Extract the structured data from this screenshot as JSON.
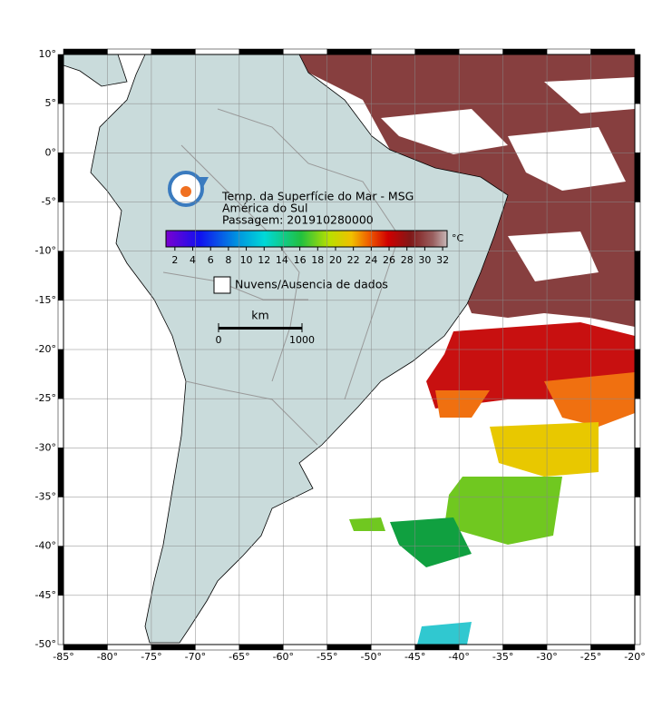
{
  "map": {
    "title_lines": [
      "Temp. da Superfície do Mar - MSG",
      "América do Sul",
      "Passagem: 201910280000"
    ],
    "xlim": [
      -85,
      -20
    ],
    "ylim": [
      -50,
      10
    ],
    "xticks": [
      {
        "value": -85,
        "label": "-85°"
      },
      {
        "value": -80,
        "label": "-80°"
      },
      {
        "value": -75,
        "label": "-75°"
      },
      {
        "value": -70,
        "label": "-70°"
      },
      {
        "value": -65,
        "label": "-65°"
      },
      {
        "value": -60,
        "label": "-60°"
      },
      {
        "value": -55,
        "label": "-55°"
      },
      {
        "value": -50,
        "label": "-50°"
      },
      {
        "value": -45,
        "label": "-45°"
      },
      {
        "value": -40,
        "label": "-40°"
      },
      {
        "value": -35,
        "label": "-35°"
      },
      {
        "value": -30,
        "label": "-30°"
      },
      {
        "value": -25,
        "label": "-25°"
      },
      {
        "value": -20,
        "label": "-20°"
      }
    ],
    "yticks": [
      {
        "value": 10,
        "label": "10°"
      },
      {
        "value": 5,
        "label": "5°"
      },
      {
        "value": 0,
        "label": "0°"
      },
      {
        "value": -5,
        "label": "-5°"
      },
      {
        "value": -10,
        "label": "-10°"
      },
      {
        "value": -15,
        "label": "-15°"
      },
      {
        "value": -20,
        "label": "-20°"
      },
      {
        "value": -25,
        "label": "-25°"
      },
      {
        "value": -30,
        "label": "-30°"
      },
      {
        "value": -35,
        "label": "-35°"
      },
      {
        "value": -40,
        "label": "-40°"
      },
      {
        "value": -45,
        "label": "-45°"
      },
      {
        "value": -50,
        "label": "-50°"
      }
    ],
    "grid": true,
    "colorbar": {
      "unit": "°C",
      "lim": [
        1,
        32.5
      ],
      "ticks": [
        2,
        4,
        6,
        8,
        10,
        12,
        14,
        16,
        18,
        20,
        22,
        24,
        26,
        28,
        30,
        32
      ]
    },
    "legend": "Nuvens/Ausencia de dados",
    "scale": {
      "unit": "km",
      "ticks": [
        0,
        1000
      ]
    }
  }
}
